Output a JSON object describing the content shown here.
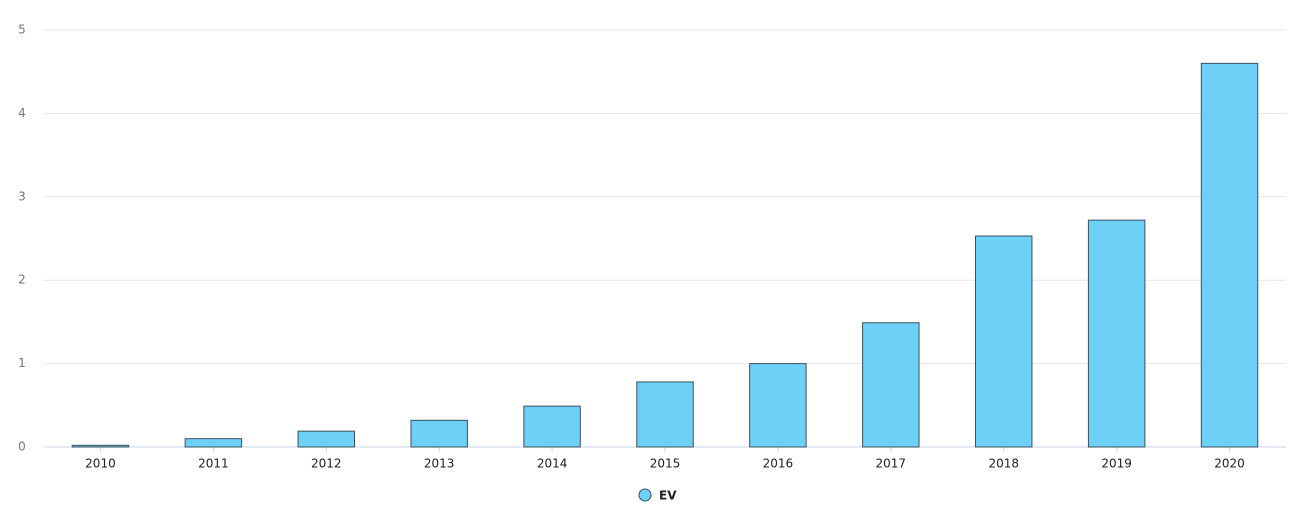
{
  "chart_data": {
    "type": "bar",
    "categories": [
      "2010",
      "2011",
      "2012",
      "2013",
      "2014",
      "2015",
      "2016",
      "2017",
      "2018",
      "2019",
      "2020"
    ],
    "series": [
      {
        "name": "EV",
        "color": "#6dd0f7",
        "values": [
          0.02,
          0.1,
          0.19,
          0.32,
          0.49,
          0.78,
          1.0,
          1.49,
          2.53,
          2.72,
          4.6
        ]
      }
    ],
    "ylim": [
      0,
      5
    ],
    "yticks": [
      0,
      1,
      2,
      3,
      4,
      5
    ],
    "grid": true,
    "legend": "bottom"
  }
}
